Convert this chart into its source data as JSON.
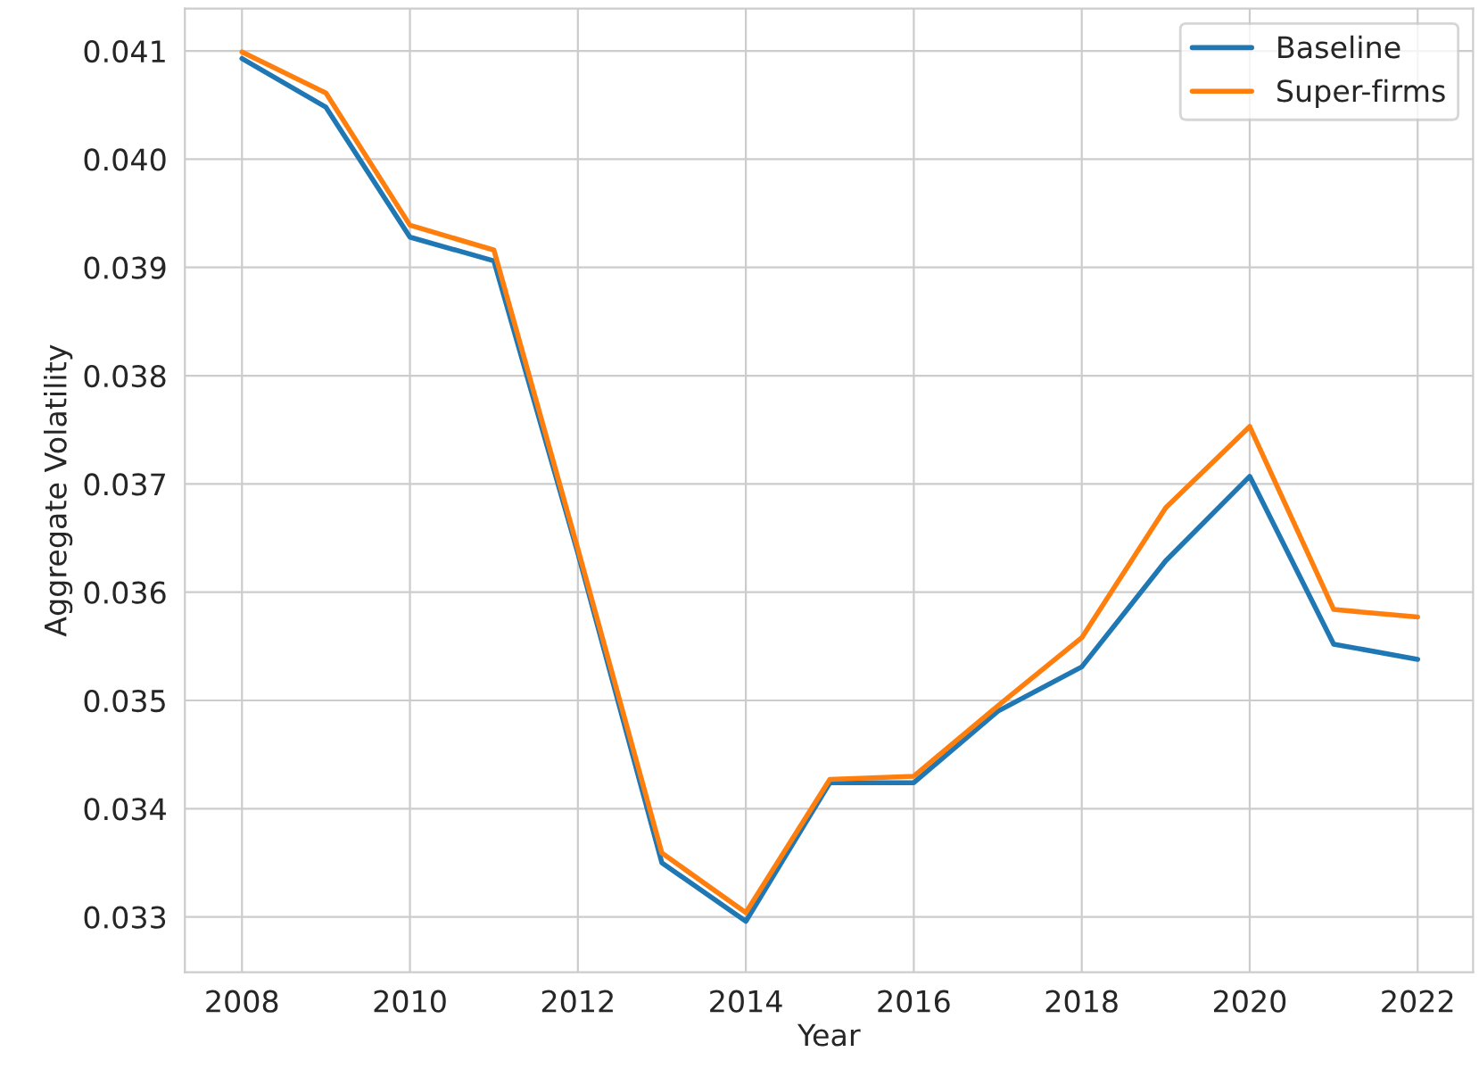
{
  "chart_data": {
    "type": "line",
    "xlabel": "Year",
    "ylabel": "Aggregate Volatility",
    "x": [
      2008,
      2009,
      2010,
      2011,
      2012,
      2013,
      2014,
      2015,
      2016,
      2017,
      2018,
      2019,
      2020,
      2021,
      2022
    ],
    "series": [
      {
        "name": "Baseline",
        "color": "#1f77b4",
        "values": [
          0.04093,
          0.04048,
          0.03928,
          0.03906,
          0.03636,
          0.0335,
          0.03296,
          0.03424,
          0.03424,
          0.0349,
          0.03531,
          0.03629,
          0.03707,
          0.03552,
          0.03538
        ]
      },
      {
        "name": "Super-firms",
        "color": "#ff7f0e",
        "values": [
          0.04099,
          0.04061,
          0.03939,
          0.03916,
          0.0364,
          0.03359,
          0.03304,
          0.03427,
          0.0343,
          0.03495,
          0.03558,
          0.03678,
          0.03753,
          0.03584,
          0.03577
        ]
      }
    ],
    "xlim": [
      2007.32,
      2022.66
    ],
    "xticks": [
      2008,
      2010,
      2012,
      2014,
      2016,
      2018,
      2020,
      2022
    ],
    "ylim": [
      0.03249,
      0.04139
    ],
    "yticks": [
      0.033,
      0.034,
      0.035,
      0.036,
      0.037,
      0.038,
      0.039,
      {
        "value": 0.04,
        "label": "0.040"
      },
      0.041
    ],
    "grid": true,
    "legend": "top right",
    "marker": "none",
    "line_style": "solid"
  }
}
